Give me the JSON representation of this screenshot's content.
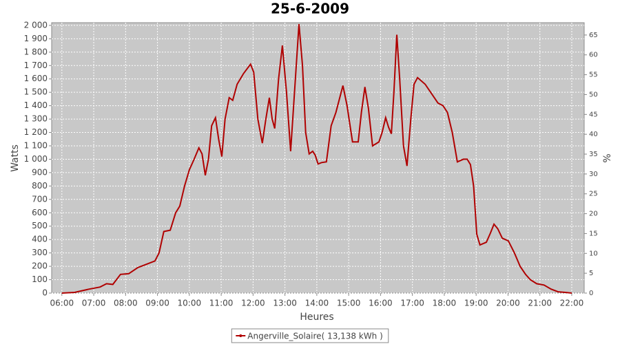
{
  "chart_data": {
    "type": "line",
    "title": "25-6-2009",
    "xlabel": "Heures",
    "ylabel": "Watts",
    "y2label": "%",
    "x": [
      6.0,
      6.4,
      6.86,
      7.2,
      7.4,
      7.6,
      7.84,
      8.1,
      8.38,
      8.6,
      8.92,
      9.05,
      9.2,
      9.4,
      9.57,
      9.7,
      9.85,
      10.0,
      10.15,
      10.3,
      10.4,
      10.5,
      10.6,
      10.7,
      10.82,
      10.92,
      11.02,
      11.12,
      11.25,
      11.36,
      11.5,
      11.7,
      11.92,
      12.02,
      12.15,
      12.29,
      12.4,
      12.51,
      12.6,
      12.68,
      12.8,
      12.92,
      13.05,
      13.18,
      13.3,
      13.44,
      13.55,
      13.65,
      13.76,
      13.87,
      13.95,
      14.04,
      14.15,
      14.3,
      14.45,
      14.6,
      14.82,
      14.95,
      15.12,
      15.3,
      15.4,
      15.51,
      15.62,
      15.75,
      15.95,
      16.05,
      16.16,
      16.25,
      16.34,
      16.42,
      16.51,
      16.6,
      16.72,
      16.83,
      16.95,
      17.05,
      17.16,
      17.4,
      17.63,
      17.8,
      17.96,
      18.1,
      18.25,
      18.41,
      18.6,
      18.72,
      18.82,
      18.92,
      19.02,
      19.12,
      19.32,
      19.45,
      19.56,
      19.68,
      19.82,
      20.01,
      20.2,
      20.38,
      20.55,
      20.7,
      20.9,
      21.13,
      21.35,
      21.57,
      21.8,
      22.0
    ],
    "series": [
      {
        "name": "Angerville_Solaire( 13,138 kWh )",
        "color": "#b00000",
        "values": [
          0,
          5,
          30,
          45,
          70,
          65,
          140,
          145,
          190,
          210,
          240,
          300,
          460,
          470,
          600,
          650,
          800,
          920,
          1000,
          1085,
          1040,
          880,
          1000,
          1250,
          1310,
          1150,
          1020,
          1300,
          1460,
          1440,
          1560,
          1640,
          1710,
          1650,
          1300,
          1120,
          1300,
          1460,
          1300,
          1230,
          1600,
          1850,
          1500,
          1060,
          1500,
          2010,
          1700,
          1200,
          1040,
          1060,
          1030,
          965,
          975,
          980,
          1250,
          1350,
          1550,
          1400,
          1130,
          1130,
          1350,
          1540,
          1380,
          1100,
          1130,
          1200,
          1310,
          1240,
          1190,
          1500,
          1930,
          1600,
          1100,
          950,
          1300,
          1560,
          1610,
          1560,
          1480,
          1420,
          1400,
          1350,
          1200,
          980,
          1000,
          1000,
          960,
          800,
          440,
          360,
          380,
          450,
          515,
          480,
          410,
          390,
          300,
          200,
          140,
          100,
          70,
          60,
          30,
          10,
          5,
          0
        ]
      }
    ],
    "xlim": [
      5.68,
      22.39
    ],
    "xticks": [
      {
        "value": 6,
        "label": "06:00"
      },
      {
        "value": 7,
        "label": "07:00"
      },
      {
        "value": 8,
        "label": "08:00"
      },
      {
        "value": 9,
        "label": "09:00"
      },
      {
        "value": 10,
        "label": "10:00"
      },
      {
        "value": 11,
        "label": "11:00"
      },
      {
        "value": 12,
        "label": "12:00"
      },
      {
        "value": 13,
        "label": "13:00"
      },
      {
        "value": 14,
        "label": "14:00"
      },
      {
        "value": 15,
        "label": "15:00"
      },
      {
        "value": 16,
        "label": "16:00"
      },
      {
        "value": 17,
        "label": "17:00"
      },
      {
        "value": 18,
        "label": "18:00"
      },
      {
        "value": 19,
        "label": "19:00"
      },
      {
        "value": 20,
        "label": "20:00"
      },
      {
        "value": 21,
        "label": "21:00"
      },
      {
        "value": 22,
        "label": "22:00"
      }
    ],
    "ylim": [
      0,
      2020
    ],
    "yticks": [
      0,
      100,
      200,
      300,
      400,
      500,
      600,
      700,
      800,
      900,
      {
        "value": 1000,
        "label": "1 000"
      },
      {
        "value": 1100,
        "label": "1 100"
      },
      {
        "value": 1200,
        "label": "1 200"
      },
      {
        "value": 1300,
        "label": "1 300"
      },
      {
        "value": 1400,
        "label": "1 400"
      },
      {
        "value": 1500,
        "label": "1 500"
      },
      {
        "value": 1600,
        "label": "1 600"
      },
      {
        "value": 1700,
        "label": "1 700"
      },
      {
        "value": 1800,
        "label": "1 800"
      },
      {
        "value": 1900,
        "label": "1 900"
      },
      {
        "value": 2000,
        "label": "2 000"
      }
    ],
    "y2lim": [
      0,
      68.1
    ],
    "y2ticks": [
      0,
      5,
      10,
      15,
      20,
      25,
      30,
      35,
      40,
      45,
      50,
      55,
      60,
      65
    ],
    "grid": true,
    "legend": "bottom"
  }
}
